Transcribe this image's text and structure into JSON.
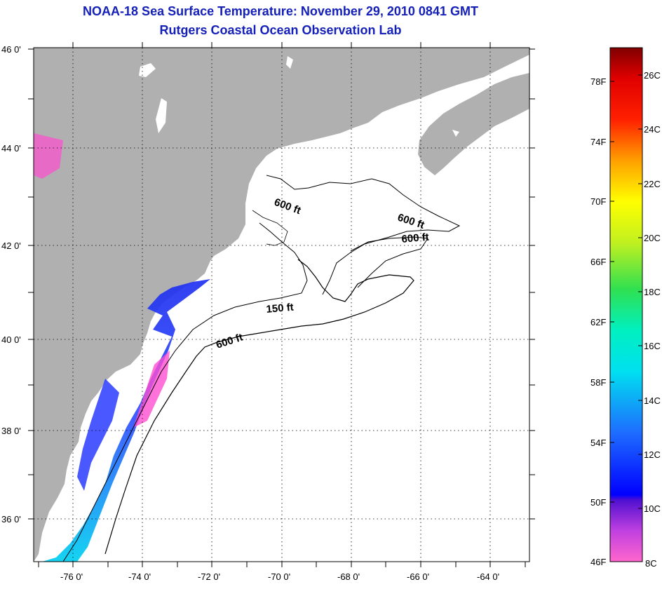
{
  "title": {
    "line1": "NOAA-18 Sea Surface Temperature:  November 29, 2010 0841 GMT",
    "line2": "Rutgers Coastal Ocean Observation Lab"
  },
  "axes": {
    "lat_labels": [
      "46 0'",
      "44 0'",
      "42 0'",
      "40 0'",
      "38 0'",
      "36 0'"
    ],
    "lon_labels": [
      "-76 0'",
      "-74 0'",
      "-72 0'",
      "-70 0'",
      "-68 0'",
      "-66 0'",
      "-64 0'"
    ]
  },
  "contours": {
    "c1": "600 ft",
    "c2": "600 ft",
    "c3": "600 ft",
    "c4": "150 ft",
    "c5": "600 ft"
  },
  "colorbar": {
    "fahrenheit": [
      "78F",
      "74F",
      "70F",
      "66F",
      "62F",
      "58F",
      "54F",
      "50F",
      "46F"
    ],
    "celsius": [
      "26C",
      "24C",
      "22C",
      "20C",
      "18C",
      "16C",
      "14C",
      "12C",
      "10C",
      "8C"
    ]
  },
  "colors": {
    "land": "#b0b0b0",
    "water": "#ffffff",
    "title": "#1420b8"
  }
}
